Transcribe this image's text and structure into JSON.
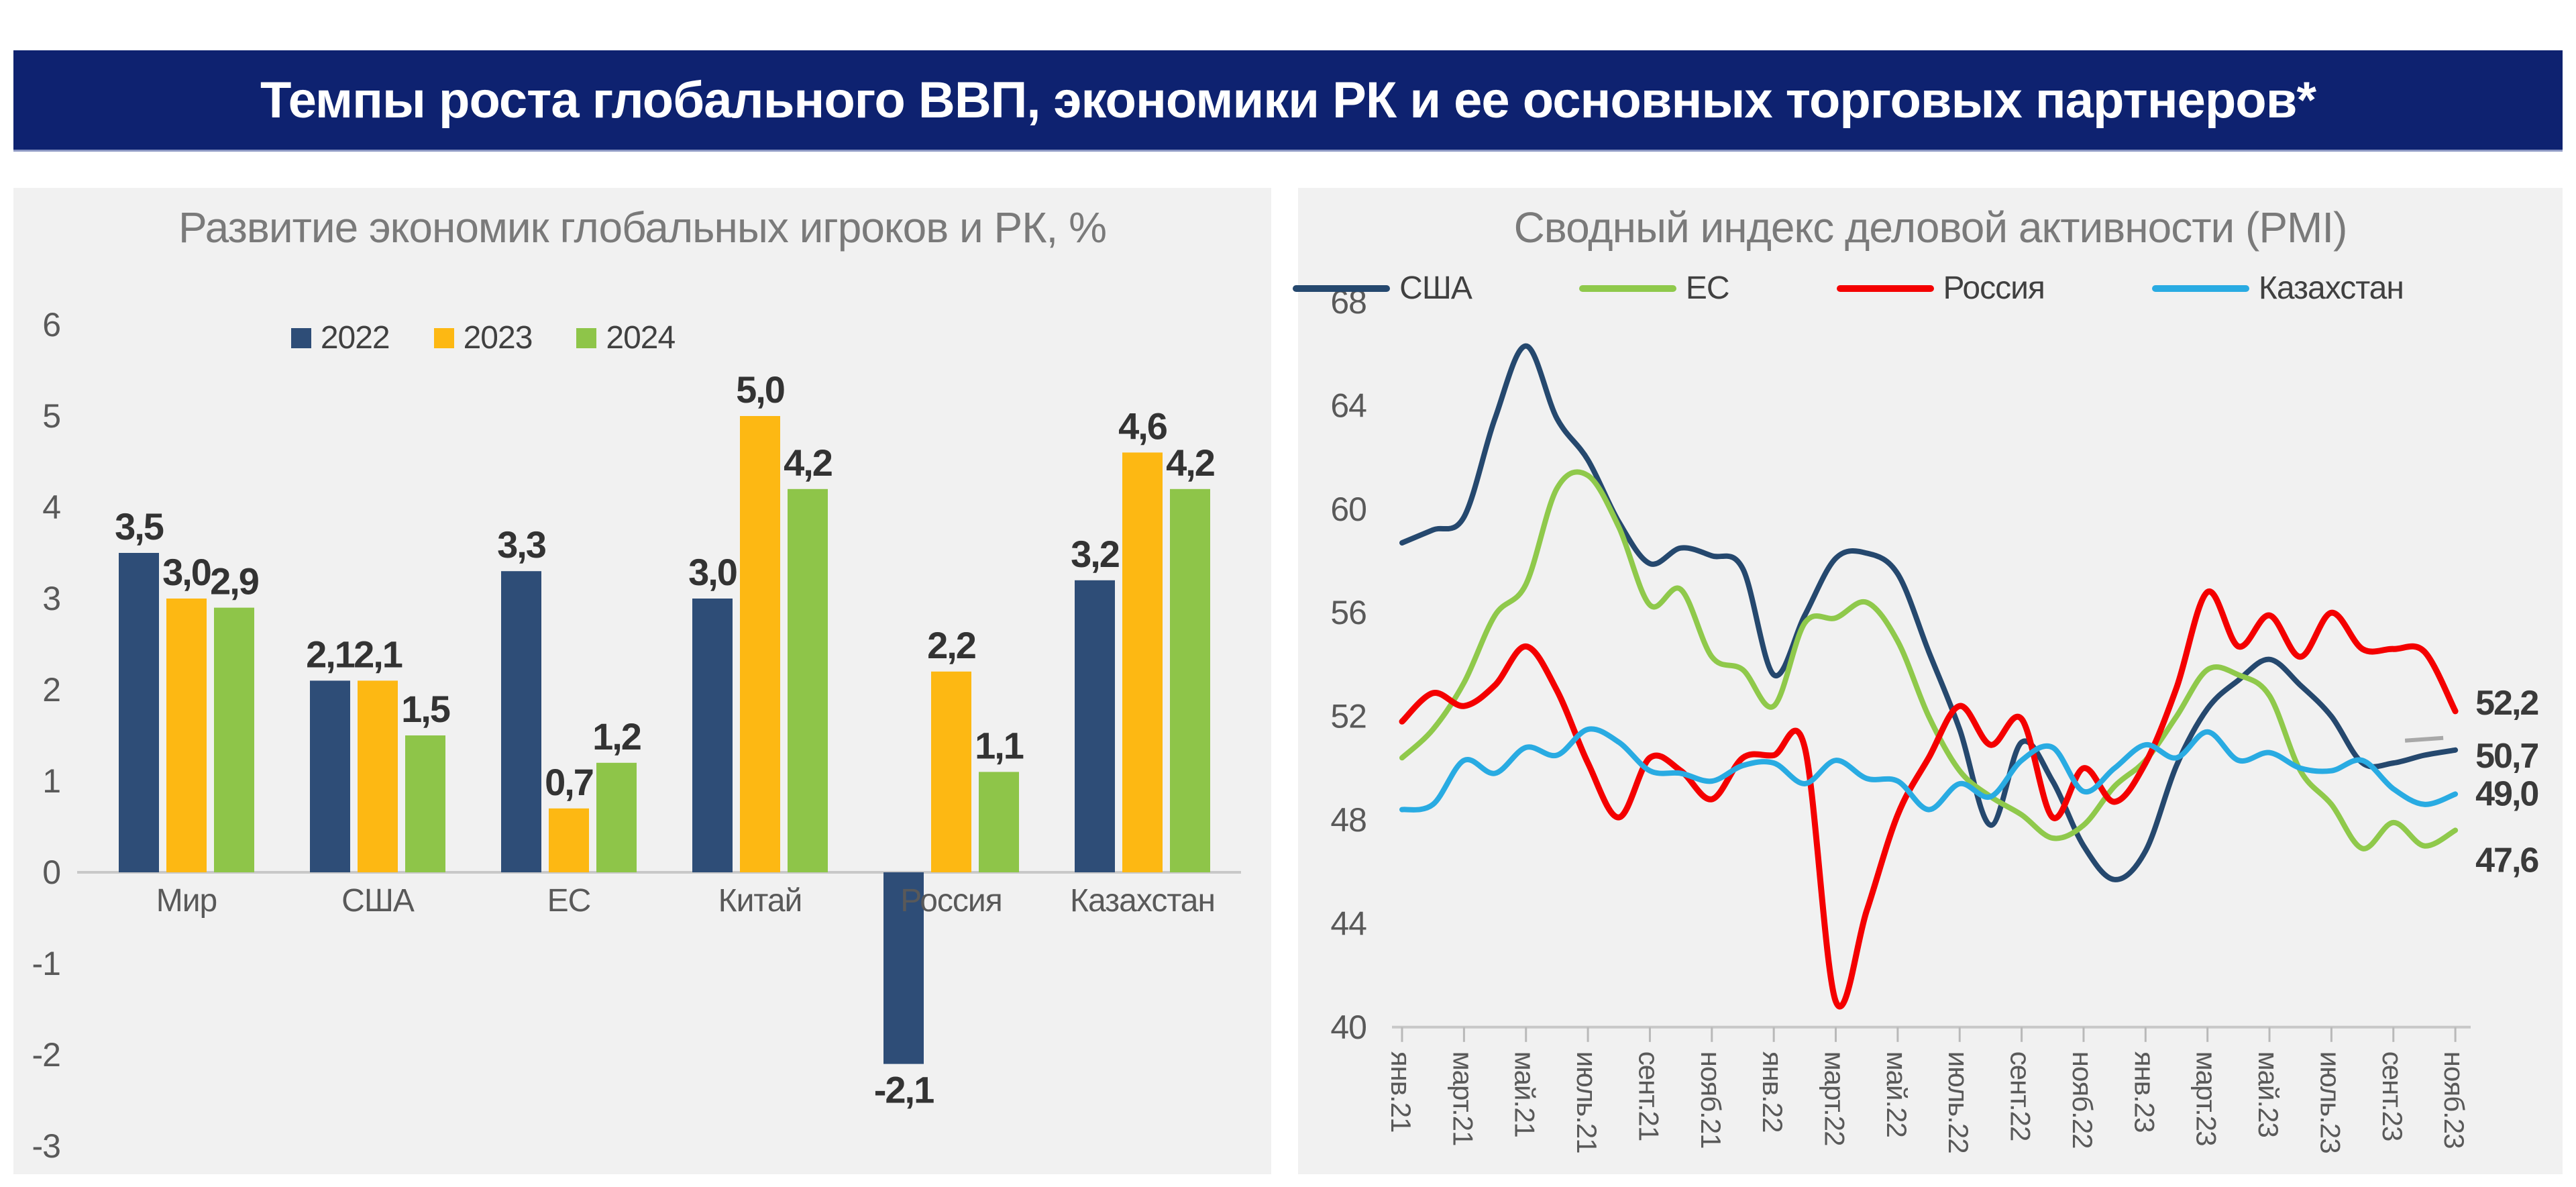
{
  "banner": {
    "title": "Темпы роста глобального ВВП, экономики РК и ее основных торговых партнеров*",
    "bg_color": "#0E2270",
    "text_color": "#FFFFFF"
  },
  "chart_data": [
    {
      "type": "bar",
      "title": "Развитие экономик глобальных игроков и РК, %",
      "categories": [
        "Мир",
        "США",
        "ЕС",
        "Китай",
        "Россия",
        "Казахстан"
      ],
      "series": [
        {
          "name": "2022",
          "color": "#2E4D77",
          "values": [
            3.5,
            2.1,
            3.3,
            3.0,
            -2.1,
            3.2
          ]
        },
        {
          "name": "2023",
          "color": "#FDB813",
          "values": [
            3.0,
            2.1,
            0.7,
            5.0,
            2.2,
            4.6
          ]
        },
        {
          "name": "2024",
          "color": "#8EC549",
          "values": [
            2.9,
            1.5,
            1.2,
            4.2,
            1.1,
            4.2
          ]
        }
      ],
      "ylim": [
        -3,
        6
      ],
      "y_ticks": [
        6,
        5,
        4,
        3,
        2,
        1,
        0,
        -1,
        -2,
        -3
      ],
      "grid": false,
      "legend_position": "top",
      "value_labels": true,
      "decimal_separator": ","
    },
    {
      "type": "line",
      "title": "Сводный индекс деловой активности (PMI)",
      "x_tick_labels": [
        "янв.21",
        "март.21",
        "май.21",
        "июль.21",
        "сент.21",
        "нояб.21",
        "янв.22",
        "март.22",
        "май.22",
        "июль.22",
        "сент.22",
        "нояб.22",
        "янв.23",
        "март.23",
        "май.23",
        "июль.23",
        "сент.23",
        "нояб.23"
      ],
      "points_count": 35,
      "series": [
        {
          "name": "США",
          "color": "#25486E",
          "end_label": "50,7",
          "values": [
            58.7,
            59.2,
            59.7,
            63.5,
            66.3,
            63.5,
            61.9,
            59.5,
            57.9,
            58.5,
            58.2,
            57.7,
            53.6,
            55.9,
            58.1,
            58.3,
            57.5,
            54.5,
            51.5,
            47.8,
            51.0,
            49.5,
            47.0,
            45.7,
            46.8,
            50.1,
            52.3,
            53.4,
            54.2,
            53.2,
            52.0,
            50.2,
            50.2,
            50.5,
            50.7
          ]
        },
        {
          "name": "ЕС",
          "color": "#8FC94B",
          "end_label": "47,6",
          "values": [
            50.4,
            51.5,
            53.3,
            55.9,
            57.1,
            60.8,
            61.3,
            59.3,
            56.3,
            56.9,
            54.3,
            53.8,
            52.4,
            55.6,
            55.8,
            56.4,
            54.9,
            52.0,
            49.9,
            48.9,
            48.2,
            47.3,
            47.8,
            49.3,
            50.3,
            52.0,
            53.8,
            53.6,
            52.8,
            49.9,
            48.6,
            46.9,
            47.9,
            47.0,
            47.6
          ]
        },
        {
          "name": "Россия",
          "color": "#F40000",
          "end_label": "52,2",
          "values": [
            51.8,
            52.9,
            52.4,
            53.2,
            54.7,
            53.0,
            50.2,
            48.1,
            50.4,
            49.9,
            48.8,
            50.4,
            50.5,
            50.8,
            41.0,
            44.5,
            48.2,
            50.4,
            52.4,
            50.9,
            51.9,
            48.1,
            50.0,
            48.7,
            50.2,
            53.1,
            56.8,
            54.7,
            55.9,
            54.3,
            56.0,
            54.6,
            54.6,
            54.5,
            52.2
          ]
        },
        {
          "name": "Казахстан",
          "color": "#29ABE2",
          "end_label": "49,0",
          "values": [
            48.4,
            48.6,
            50.3,
            49.8,
            50.8,
            50.5,
            51.5,
            51.0,
            49.9,
            49.8,
            49.5,
            50.1,
            50.2,
            49.4,
            50.3,
            49.6,
            49.5,
            48.4,
            49.4,
            48.9,
            50.3,
            50.8,
            49.1,
            50.0,
            50.9,
            50.4,
            51.4,
            50.3,
            50.6,
            50.0,
            49.9,
            50.3,
            49.2,
            48.6,
            49.0
          ]
        }
      ],
      "ylim": [
        40,
        68
      ],
      "y_ticks": [
        68,
        64,
        60,
        56,
        52,
        48,
        44,
        40
      ],
      "grid": false,
      "legend_position": "top"
    }
  ],
  "colors": {
    "panel_bg": "#F1F1F1",
    "axis_line": "#C8C8C8",
    "tick_text": "#595959",
    "title_text": "#7A7A7A",
    "value_label_text": "#333333",
    "leader_dash": "#A8A8A8"
  }
}
